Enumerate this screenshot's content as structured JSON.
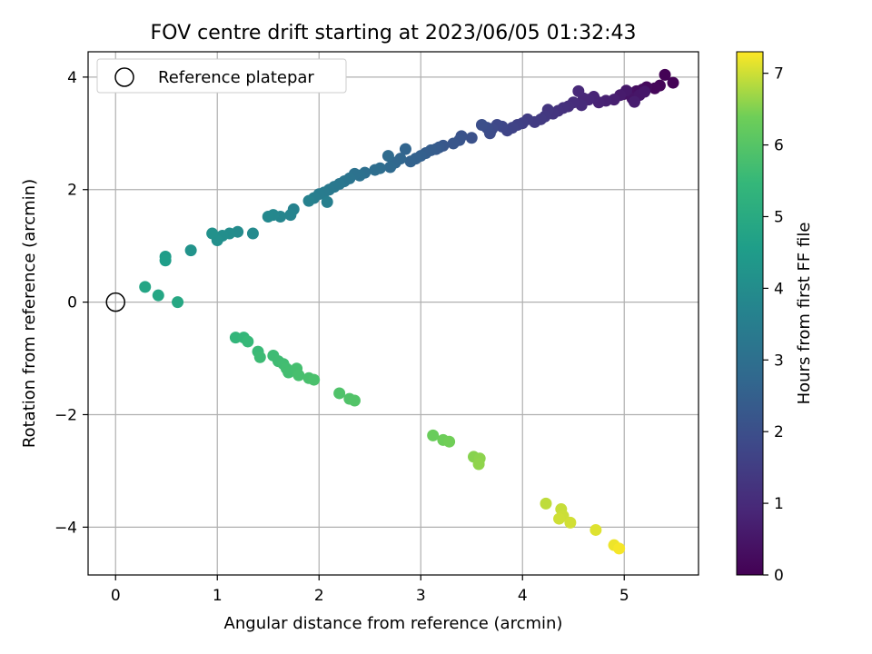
{
  "chart_data": {
    "type": "scatter",
    "title": "FOV centre drift starting at 2023/06/05 01:32:43",
    "xlabel": "Angular distance from reference (arcmin)",
    "ylabel": "Rotation from reference (arcmin)",
    "xlim": [
      -0.27,
      5.73
    ],
    "ylim": [
      -4.85,
      4.45
    ],
    "xticks": [
      0,
      1,
      2,
      3,
      4,
      5
    ],
    "yticks": [
      -4,
      -2,
      0,
      2,
      4
    ],
    "xtick_labels": [
      "0",
      "1",
      "2",
      "3",
      "4",
      "5"
    ],
    "ytick_labels": [
      "−4",
      "−2",
      "0",
      "2",
      "4"
    ],
    "grid": true,
    "legend": {
      "position": "top-left",
      "entries": [
        {
          "label": "Reference platepar",
          "marker": "open-circle",
          "x": 0,
          "y": 0
        }
      ]
    },
    "colorbar": {
      "label": "Hours from first FF file",
      "range": [
        0,
        7.3
      ],
      "ticks": [
        0,
        1,
        2,
        3,
        4,
        5,
        6,
        7
      ],
      "tick_labels": [
        "0",
        "1",
        "2",
        "3",
        "4",
        "5",
        "6",
        "7"
      ],
      "colormap": "viridis"
    },
    "series": [
      {
        "points": [
          [
            5.4,
            4.04,
            0.02
          ],
          [
            5.48,
            3.9,
            0.05
          ],
          [
            5.35,
            3.85,
            0.1
          ],
          [
            5.3,
            3.8,
            0.15
          ],
          [
            5.22,
            3.82,
            0.2
          ],
          [
            5.18,
            3.78,
            0.25
          ],
          [
            5.12,
            3.75,
            0.3
          ],
          [
            5.05,
            3.72,
            0.35
          ],
          [
            5.0,
            3.7,
            0.4
          ],
          [
            5.08,
            3.62,
            0.45
          ],
          [
            5.15,
            3.68,
            0.5
          ],
          [
            5.2,
            3.74,
            0.52
          ],
          [
            5.02,
            3.76,
            0.55
          ],
          [
            4.96,
            3.68,
            0.6
          ],
          [
            5.1,
            3.56,
            0.65
          ],
          [
            4.9,
            3.6,
            0.7
          ],
          [
            4.82,
            3.58,
            0.75
          ],
          [
            4.75,
            3.55,
            0.8
          ],
          [
            4.7,
            3.65,
            0.85
          ],
          [
            4.65,
            3.6,
            0.9
          ],
          [
            4.6,
            3.62,
            0.92
          ],
          [
            4.55,
            3.75,
            0.95
          ],
          [
            4.58,
            3.5,
            1.0
          ],
          [
            4.5,
            3.55,
            1.05
          ],
          [
            4.45,
            3.48,
            1.1
          ],
          [
            4.4,
            3.45,
            1.15
          ],
          [
            4.35,
            3.4,
            1.2
          ],
          [
            4.3,
            3.35,
            1.25
          ],
          [
            4.25,
            3.42,
            1.3
          ],
          [
            4.22,
            3.3,
            1.35
          ],
          [
            4.18,
            3.25,
            1.4
          ],
          [
            4.12,
            3.2,
            1.45
          ],
          [
            4.05,
            3.25,
            1.5
          ],
          [
            4.0,
            3.18,
            1.55
          ],
          [
            3.95,
            3.15,
            1.6
          ],
          [
            3.9,
            3.1,
            1.65
          ],
          [
            3.85,
            3.05,
            1.7
          ],
          [
            3.8,
            3.12,
            1.75
          ],
          [
            3.75,
            3.15,
            1.8
          ],
          [
            3.7,
            3.08,
            1.85
          ],
          [
            3.68,
            3.0,
            1.9
          ],
          [
            3.65,
            3.1,
            1.95
          ],
          [
            3.6,
            3.15,
            2.0
          ],
          [
            3.5,
            2.92,
            2.05
          ],
          [
            3.4,
            2.95,
            2.1
          ],
          [
            3.38,
            2.88,
            2.15
          ],
          [
            3.32,
            2.82,
            2.2
          ],
          [
            3.22,
            2.78,
            2.25
          ],
          [
            3.18,
            2.75,
            2.3
          ],
          [
            3.15,
            2.72,
            2.35
          ],
          [
            3.1,
            2.7,
            2.4
          ],
          [
            3.05,
            2.65,
            2.45
          ],
          [
            3.0,
            2.6,
            2.5
          ],
          [
            2.95,
            2.55,
            2.55
          ],
          [
            2.9,
            2.5,
            2.6
          ],
          [
            2.85,
            2.72,
            2.65
          ],
          [
            2.8,
            2.55,
            2.7
          ],
          [
            2.75,
            2.48,
            2.75
          ],
          [
            2.7,
            2.4,
            2.8
          ],
          [
            2.68,
            2.6,
            2.85
          ],
          [
            2.6,
            2.38,
            2.9
          ],
          [
            2.55,
            2.35,
            2.95
          ],
          [
            2.45,
            2.3,
            3.0
          ],
          [
            2.4,
            2.25,
            3.05
          ],
          [
            2.35,
            2.28,
            3.1
          ],
          [
            2.3,
            2.2,
            3.15
          ],
          [
            2.25,
            2.15,
            3.2
          ],
          [
            2.2,
            2.1,
            3.25
          ],
          [
            2.15,
            2.05,
            3.3
          ],
          [
            2.1,
            2.0,
            3.35
          ],
          [
            2.05,
            1.95,
            3.4
          ],
          [
            2.0,
            1.92,
            3.45
          ],
          [
            1.95,
            1.85,
            3.5
          ],
          [
            2.08,
            1.78,
            3.55
          ],
          [
            1.9,
            1.8,
            3.6
          ],
          [
            1.75,
            1.65,
            3.65
          ],
          [
            1.72,
            1.55,
            3.7
          ],
          [
            1.62,
            1.52,
            3.75
          ],
          [
            1.55,
            1.55,
            3.8
          ],
          [
            1.5,
            1.52,
            3.85
          ],
          [
            1.35,
            1.22,
            3.9
          ],
          [
            1.2,
            1.25,
            3.95
          ],
          [
            1.12,
            1.22,
            4.0
          ],
          [
            1.05,
            1.18,
            4.05
          ],
          [
            1.0,
            1.1,
            4.1
          ],
          [
            0.95,
            1.22,
            4.15
          ],
          [
            0.74,
            0.92,
            4.2
          ],
          [
            0.49,
            0.81,
            4.5
          ],
          [
            0.49,
            0.74,
            4.55
          ],
          [
            0.29,
            0.27,
            4.8
          ],
          [
            0.42,
            0.12,
            4.85
          ],
          [
            0.61,
            0.0,
            4.9
          ],
          [
            1.18,
            -0.63,
            5.4
          ],
          [
            1.26,
            -0.63,
            5.45
          ],
          [
            1.3,
            -0.7,
            5.5
          ],
          [
            1.4,
            -0.88,
            5.55
          ],
          [
            1.42,
            -0.98,
            5.6
          ],
          [
            1.55,
            -0.95,
            5.62
          ],
          [
            1.6,
            -1.05,
            5.65
          ],
          [
            1.65,
            -1.1,
            5.68
          ],
          [
            1.68,
            -1.18,
            5.7
          ],
          [
            1.7,
            -1.25,
            5.72
          ],
          [
            1.78,
            -1.18,
            5.75
          ],
          [
            1.8,
            -1.3,
            5.78
          ],
          [
            1.9,
            -1.35,
            5.8
          ],
          [
            1.95,
            -1.38,
            5.82
          ],
          [
            2.2,
            -1.62,
            5.9
          ],
          [
            2.3,
            -1.72,
            5.93
          ],
          [
            2.35,
            -1.75,
            5.95
          ],
          [
            3.12,
            -2.37,
            6.3
          ],
          [
            3.22,
            -2.45,
            6.35
          ],
          [
            3.28,
            -2.48,
            6.4
          ],
          [
            3.52,
            -2.75,
            6.55
          ],
          [
            3.58,
            -2.78,
            6.58
          ],
          [
            3.57,
            -2.88,
            6.6
          ],
          [
            4.23,
            -3.58,
            6.9
          ],
          [
            4.38,
            -3.68,
            6.95
          ],
          [
            4.4,
            -3.8,
            6.98
          ],
          [
            4.36,
            -3.85,
            7.0
          ],
          [
            4.47,
            -3.92,
            7.02
          ],
          [
            4.72,
            -4.05,
            7.1
          ],
          [
            4.9,
            -4.32,
            7.2
          ],
          [
            4.95,
            -4.38,
            7.25
          ]
        ]
      }
    ]
  }
}
